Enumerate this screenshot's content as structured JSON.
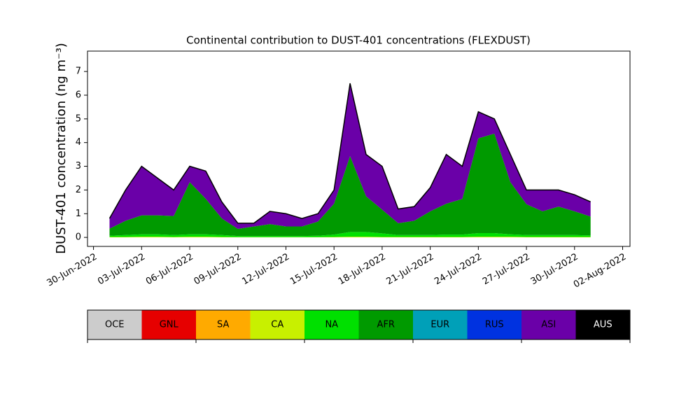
{
  "chart_data": {
    "type": "stacked_area",
    "title": "Continental contribution to DUST-401 concentrations (FLEXDUST)",
    "y_label": "DUST-401 concentration (ng m⁻³)",
    "x": [
      "2022-07-01",
      "2022-07-02",
      "2022-07-03",
      "2022-07-04",
      "2022-07-05",
      "2022-07-06",
      "2022-07-07",
      "2022-07-08",
      "2022-07-09",
      "2022-07-10",
      "2022-07-11",
      "2022-07-12",
      "2022-07-13",
      "2022-07-14",
      "2022-07-15",
      "2022-07-16",
      "2022-07-17",
      "2022-07-18",
      "2022-07-19",
      "2022-07-20",
      "2022-07-21",
      "2022-07-22",
      "2022-07-23",
      "2022-07-24",
      "2022-07-25",
      "2022-07-26",
      "2022-07-27",
      "2022-07-28",
      "2022-07-29",
      "2022-07-30",
      "2022-07-31"
    ],
    "xlim": [
      "2022-06-29T15:00:00Z",
      "2022-08-02T11:00:00Z"
    ],
    "xticks": [
      {
        "value": "2022-06-30",
        "label": "30-Jun-2022"
      },
      {
        "value": "2022-07-03",
        "label": "03-Jul-2022"
      },
      {
        "value": "2022-07-06",
        "label": "06-Jul-2022"
      },
      {
        "value": "2022-07-09",
        "label": "09-Jul-2022"
      },
      {
        "value": "2022-07-12",
        "label": "12-Jul-2022"
      },
      {
        "value": "2022-07-15",
        "label": "15-Jul-2022"
      },
      {
        "value": "2022-07-18",
        "label": "18-Jul-2022"
      },
      {
        "value": "2022-07-21",
        "label": "21-Jul-2022"
      },
      {
        "value": "2022-07-24",
        "label": "24-Jul-2022"
      },
      {
        "value": "2022-07-27",
        "label": "27-Jul-2022"
      },
      {
        "value": "2022-07-30",
        "label": "30-Jul-2022"
      },
      {
        "value": "2022-08-02",
        "label": "02-Aug-2022"
      }
    ],
    "ylim": [
      -0.38,
      7.86
    ],
    "yticks": [
      0,
      1,
      2,
      3,
      4,
      5,
      6,
      7
    ],
    "series": [
      {
        "name": "OCE",
        "color": "#cccccc",
        "values": [
          0,
          0,
          0,
          0,
          0,
          0,
          0,
          0,
          0,
          0,
          0,
          0,
          0,
          0,
          0,
          0,
          0,
          0,
          0,
          0,
          0,
          0,
          0,
          0,
          0,
          0,
          0,
          0,
          0,
          0,
          0
        ]
      },
      {
        "name": "GNL",
        "color": "#e60000",
        "values": [
          0,
          0,
          0,
          0,
          0,
          0,
          0,
          0,
          0,
          0,
          0,
          0,
          0,
          0,
          0,
          0,
          0,
          0,
          0,
          0,
          0,
          0,
          0,
          0,
          0,
          0,
          0,
          0,
          0,
          0,
          0
        ]
      },
      {
        "name": "SA",
        "color": "#ffaa00",
        "values": [
          0,
          0,
          0,
          0,
          0,
          0,
          0,
          0,
          0,
          0,
          0,
          0,
          0,
          0,
          0,
          0,
          0,
          0,
          0,
          0,
          0,
          0,
          0,
          0,
          0,
          0,
          0,
          0,
          0,
          0,
          0
        ]
      },
      {
        "name": "CA",
        "color": "#c8f000",
        "values": [
          0.02,
          0.02,
          0.03,
          0.03,
          0.02,
          0.03,
          0.03,
          0.02,
          0.01,
          0.01,
          0.01,
          0.01,
          0.01,
          0.01,
          0.02,
          0.03,
          0.03,
          0.02,
          0.02,
          0.02,
          0.02,
          0.02,
          0.02,
          0.03,
          0.03,
          0.03,
          0.02,
          0.02,
          0.02,
          0.02,
          0.02
        ]
      },
      {
        "name": "NA",
        "color": "#00e000",
        "values": [
          0.05,
          0.08,
          0.1,
          0.1,
          0.08,
          0.1,
          0.1,
          0.08,
          0.05,
          0.05,
          0.05,
          0.05,
          0.05,
          0.06,
          0.1,
          0.2,
          0.2,
          0.15,
          0.08,
          0.08,
          0.08,
          0.1,
          0.1,
          0.15,
          0.15,
          0.1,
          0.08,
          0.08,
          0.08,
          0.08,
          0.06
        ]
      },
      {
        "name": "AFR",
        "color": "#009a00",
        "values": [
          0.3,
          0.6,
          0.8,
          0.8,
          0.8,
          2.2,
          1.5,
          0.7,
          0.3,
          0.4,
          0.5,
          0.4,
          0.4,
          0.6,
          1.3,
          3.2,
          1.5,
          1.0,
          0.5,
          0.6,
          1.0,
          1.3,
          1.5,
          4.0,
          4.2,
          2.2,
          1.3,
          1.0,
          1.2,
          1.0,
          0.8
        ]
      },
      {
        "name": "EUR",
        "color": "#00a0b8",
        "values": [
          0,
          0,
          0,
          0,
          0,
          0,
          0,
          0,
          0,
          0,
          0,
          0,
          0,
          0,
          0,
          0,
          0,
          0,
          0,
          0,
          0,
          0,
          0,
          0,
          0,
          0,
          0,
          0,
          0,
          0,
          0
        ]
      },
      {
        "name": "RUS",
        "color": "#0032e0",
        "values": [
          0,
          0,
          0,
          0,
          0,
          0,
          0,
          0,
          0,
          0,
          0,
          0,
          0,
          0,
          0,
          0,
          0,
          0,
          0,
          0,
          0,
          0,
          0,
          0,
          0,
          0,
          0,
          0,
          0,
          0,
          0
        ]
      },
      {
        "name": "ASI",
        "color": "#6a00a8",
        "values": [
          0.43,
          1.3,
          2.07,
          1.57,
          1.1,
          0.67,
          1.17,
          0.7,
          0.24,
          0.14,
          0.54,
          0.54,
          0.34,
          0.33,
          0.58,
          3.07,
          1.77,
          1.83,
          0.6,
          0.6,
          1.0,
          2.08,
          1.38,
          1.12,
          0.62,
          1.17,
          0.6,
          0.9,
          0.7,
          0.7,
          0.62
        ]
      },
      {
        "name": "AUS",
        "color": "#000000",
        "values": [
          0,
          0,
          0,
          0,
          0,
          0,
          0,
          0,
          0,
          0,
          0,
          0,
          0,
          0,
          0,
          0,
          0,
          0,
          0,
          0,
          0,
          0,
          0,
          0,
          0,
          0,
          0,
          0,
          0,
          0,
          0
        ]
      }
    ]
  }
}
